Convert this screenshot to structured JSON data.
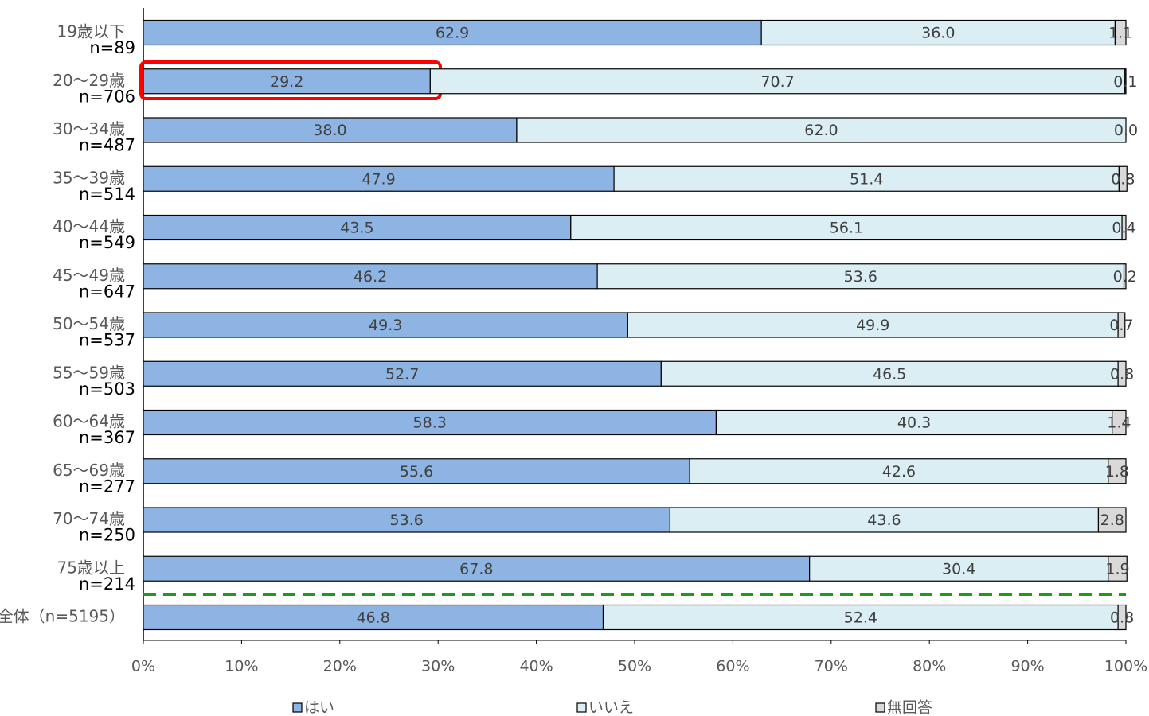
{
  "chart_data": {
    "type": "stacked_bar_horizontal",
    "categories": [
      "19歳以下",
      "20～29歳",
      "30～34歳",
      "35～39歳",
      "40～44歳",
      "45～49歳",
      "50～54歳",
      "55～59歳",
      "60～64歳",
      "65～69歳",
      "70～74歳",
      "75歳以上",
      "全体（n=5195）"
    ],
    "n_labels": [
      "n=89",
      "n=706",
      "n=487",
      "n=514",
      "n=549",
      "n=647",
      "n=537",
      "n=503",
      "n=367",
      "n=277",
      "n=250",
      "n=214",
      null
    ],
    "series": [
      {
        "name": "はい",
        "color": "#8eb4e3",
        "values": [
          62.9,
          29.2,
          38.0,
          47.9,
          43.5,
          46.2,
          49.3,
          52.7,
          58.3,
          55.6,
          53.6,
          67.8,
          46.8
        ],
        "value_labels": [
          "62.9",
          "29.2",
          "38.0",
          "47.9",
          "43.5",
          "46.2",
          "49.3",
          "52.7",
          "58.3",
          "55.6",
          "53.6",
          "67.8",
          "46.8"
        ]
      },
      {
        "name": "いいえ",
        "color": "#dbeef4",
        "values": [
          36.0,
          70.7,
          62.0,
          51.4,
          56.1,
          53.6,
          49.9,
          46.5,
          40.3,
          42.6,
          43.6,
          30.4,
          52.4
        ],
        "value_labels": [
          "36.0",
          "70.7",
          "62.0",
          "51.4",
          "56.1",
          "53.6",
          "49.9",
          "46.5",
          "40.3",
          "42.6",
          "43.6",
          "30.4",
          "52.4"
        ]
      },
      {
        "name": "無回答",
        "color": "#d9d9d9",
        "values": [
          1.1,
          0.1,
          0.0,
          0.8,
          0.4,
          0.2,
          0.7,
          0.8,
          1.4,
          1.8,
          2.8,
          1.9,
          0.8
        ],
        "value_labels": [
          "1.1",
          "0.1",
          "0.0",
          "0.8",
          "0.4",
          "0.2",
          "0.7",
          "0.8",
          "1.4",
          "1.8",
          "2.8",
          "1.9",
          "0.8"
        ]
      }
    ],
    "xlim": [
      0,
      100
    ],
    "xticks": [
      {
        "value": 0,
        "label": "0%"
      },
      {
        "value": 10,
        "label": "10%"
      },
      {
        "value": 20,
        "label": "20%"
      },
      {
        "value": 30,
        "label": "30%"
      },
      {
        "value": 40,
        "label": "40%"
      },
      {
        "value": 50,
        "label": "50%"
      },
      {
        "value": 60,
        "label": "60%"
      },
      {
        "value": 70,
        "label": "70%"
      },
      {
        "value": 80,
        "label": "80%"
      },
      {
        "value": 90,
        "label": "90%"
      },
      {
        "value": 100,
        "label": "100%"
      }
    ],
    "legend": "bottom"
  }
}
